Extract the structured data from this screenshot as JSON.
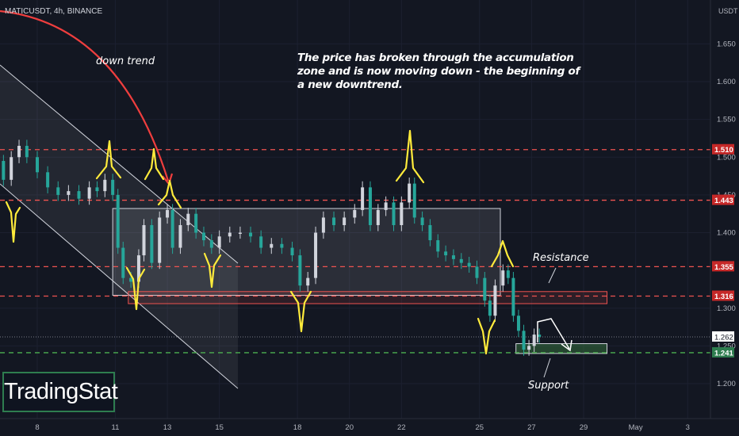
{
  "header": {
    "symbol": "MATICUSDT, 4h, BINANCE",
    "unit": "USDT"
  },
  "annotations": {
    "note": "The price has broken through the accumulation zone and is now moving down - the beginning of a new downtrend.",
    "down_trend": "down trend",
    "resistance": "Resistance",
    "support": "Support"
  },
  "logo": {
    "text": "TradingStat"
  },
  "colors": {
    "background": "#131722",
    "up": "#26a69a",
    "down": "#ef5350",
    "level_red": "#ef5350",
    "level_green": "#4caf50",
    "marker": "#ffeb3b",
    "arrow": "#ef3e3e"
  },
  "chart_data": {
    "type": "candlestick",
    "symbol": "MATICUSDT",
    "timeframe": "4h",
    "exchange": "BINANCE",
    "ylim": [
      1.17,
      1.72
    ],
    "y_ticks": [
      "1.650",
      "1.600",
      "1.550",
      "1.500",
      "1.450",
      "1.400",
      "1.300",
      "1.250",
      "1.200"
    ],
    "x_ticks": [
      {
        "label": "8",
        "day": 8
      },
      {
        "label": "11",
        "day": 11
      },
      {
        "label": "13",
        "day": 13
      },
      {
        "label": "15",
        "day": 15
      },
      {
        "label": "18",
        "day": 18
      },
      {
        "label": "20",
        "day": 20
      },
      {
        "label": "22",
        "day": 22
      },
      {
        "label": "25",
        "day": 25
      },
      {
        "label": "27",
        "day": 27
      },
      {
        "label": "29",
        "day": 29
      },
      {
        "label": "May",
        "day": 31
      },
      {
        "label": "3",
        "day": 33
      }
    ],
    "price_levels": [
      {
        "value": 1.51,
        "label": "1.510",
        "color": "red"
      },
      {
        "value": 1.443,
        "label": "1.443",
        "color": "red"
      },
      {
        "value": 1.355,
        "label": "1.355",
        "color": "red"
      },
      {
        "value": 1.316,
        "label": "1.316",
        "color": "red"
      },
      {
        "value": 1.241,
        "label": "1.241",
        "color": "green"
      }
    ],
    "last_price": {
      "value": 1.262,
      "label": "1.262"
    },
    "accumulation_zone": {
      "start_day": 10.9,
      "end_day": 25.8,
      "top": 1.432,
      "bottom": 1.317
    },
    "resistance_zone": {
      "start_day": 11.5,
      "end_day": 29.9,
      "top": 1.322,
      "bottom": 1.306
    },
    "support_zone": {
      "start_day": 26.4,
      "end_day": 29.9,
      "top": 1.253,
      "bottom": 1.24
    },
    "close_series": [
      {
        "day": 6.5,
        "close": 1.495
      },
      {
        "day": 6.7,
        "close": 1.47
      },
      {
        "day": 7.0,
        "close": 1.5
      },
      {
        "day": 7.3,
        "close": 1.515
      },
      {
        "day": 7.6,
        "close": 1.5
      },
      {
        "day": 8.0,
        "close": 1.48
      },
      {
        "day": 8.4,
        "close": 1.46
      },
      {
        "day": 8.8,
        "close": 1.45
      },
      {
        "day": 9.2,
        "close": 1.455
      },
      {
        "day": 9.6,
        "close": 1.445
      },
      {
        "day": 10.0,
        "close": 1.46
      },
      {
        "day": 10.3,
        "close": 1.455
      },
      {
        "day": 10.6,
        "close": 1.47
      },
      {
        "day": 10.9,
        "close": 1.45
      },
      {
        "day": 11.1,
        "close": 1.38
      },
      {
        "day": 11.3,
        "close": 1.34
      },
      {
        "day": 11.6,
        "close": 1.335
      },
      {
        "day": 11.9,
        "close": 1.37
      },
      {
        "day": 12.1,
        "close": 1.41
      },
      {
        "day": 12.4,
        "close": 1.36
      },
      {
        "day": 12.7,
        "close": 1.42
      },
      {
        "day": 13.0,
        "close": 1.43
      },
      {
        "day": 13.2,
        "close": 1.38
      },
      {
        "day": 13.5,
        "close": 1.41
      },
      {
        "day": 13.8,
        "close": 1.425
      },
      {
        "day": 14.1,
        "close": 1.4
      },
      {
        "day": 14.4,
        "close": 1.39
      },
      {
        "day": 14.7,
        "close": 1.38
      },
      {
        "day": 15.0,
        "close": 1.395
      },
      {
        "day": 15.4,
        "close": 1.4
      },
      {
        "day": 15.8,
        "close": 1.4
      },
      {
        "day": 16.2,
        "close": 1.395
      },
      {
        "day": 16.6,
        "close": 1.38
      },
      {
        "day": 17.0,
        "close": 1.385
      },
      {
        "day": 17.4,
        "close": 1.38
      },
      {
        "day": 17.8,
        "close": 1.37
      },
      {
        "day": 18.1,
        "close": 1.33
      },
      {
        "day": 18.4,
        "close": 1.34
      },
      {
        "day": 18.7,
        "close": 1.4
      },
      {
        "day": 19.0,
        "close": 1.42
      },
      {
        "day": 19.4,
        "close": 1.41
      },
      {
        "day": 19.8,
        "close": 1.42
      },
      {
        "day": 20.2,
        "close": 1.43
      },
      {
        "day": 20.5,
        "close": 1.46
      },
      {
        "day": 20.8,
        "close": 1.41
      },
      {
        "day": 21.1,
        "close": 1.43
      },
      {
        "day": 21.4,
        "close": 1.44
      },
      {
        "day": 21.7,
        "close": 1.41
      },
      {
        "day": 22.0,
        "close": 1.44
      },
      {
        "day": 22.3,
        "close": 1.465
      },
      {
        "day": 22.5,
        "close": 1.42
      },
      {
        "day": 22.8,
        "close": 1.41
      },
      {
        "day": 23.1,
        "close": 1.39
      },
      {
        "day": 23.4,
        "close": 1.375
      },
      {
        "day": 23.7,
        "close": 1.37
      },
      {
        "day": 24.0,
        "close": 1.365
      },
      {
        "day": 24.3,
        "close": 1.36
      },
      {
        "day": 24.6,
        "close": 1.355
      },
      {
        "day": 24.9,
        "close": 1.34
      },
      {
        "day": 25.2,
        "close": 1.31
      },
      {
        "day": 25.4,
        "close": 1.29
      },
      {
        "day": 25.6,
        "close": 1.33
      },
      {
        "day": 25.9,
        "close": 1.35
      },
      {
        "day": 26.1,
        "close": 1.34
      },
      {
        "day": 26.3,
        "close": 1.29
      },
      {
        "day": 26.5,
        "close": 1.27
      },
      {
        "day": 26.7,
        "close": 1.245
      },
      {
        "day": 26.9,
        "close": 1.25
      },
      {
        "day": 27.1,
        "close": 1.265
      },
      {
        "day": 27.3,
        "close": 1.262
      }
    ]
  }
}
